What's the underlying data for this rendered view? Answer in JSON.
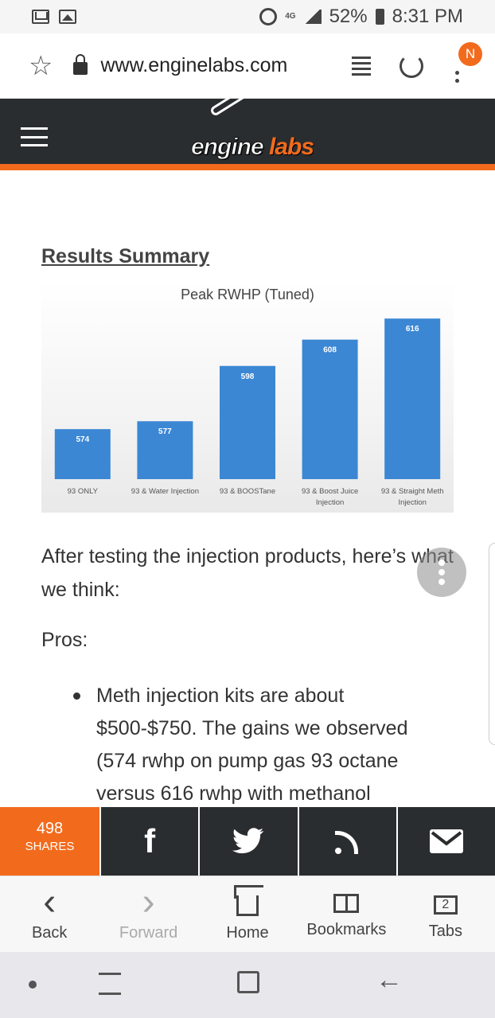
{
  "status_bar": {
    "battery": "52%",
    "time": "8:31 PM",
    "network": "4G"
  },
  "browser": {
    "url": "www.enginelabs.com",
    "profile_initial": "N"
  },
  "site": {
    "logo_engine": "engine",
    "logo_labs": "labs"
  },
  "article": {
    "heading": "Results Summary",
    "paragraph": "After testing the injection products, here’s what we think:",
    "pros_label": "Pros:",
    "bullet_1": "Meth injection kits are about $500-$750. The gains we observed (574 rwhp on pump gas 93 octane versus 616 rwhp with methanol"
  },
  "chart_data": {
    "type": "bar",
    "title": "Peak RWHP (Tuned)",
    "categories": [
      [
        "93 ONLY"
      ],
      [
        "93 & Water Injection"
      ],
      [
        "93 & BOOSTane"
      ],
      [
        "93 & Boost Juice",
        "Injection"
      ],
      [
        "93 & Straight Meth",
        "Injection"
      ]
    ],
    "values": [
      574,
      577,
      598,
      608,
      616
    ],
    "value_labels": [
      "574",
      "577",
      "598",
      "608",
      "616"
    ],
    "bar_color": "#3b87d4",
    "xlabel": "",
    "ylabel": "",
    "grid": false
  },
  "share_bar": {
    "count": "498",
    "count_label": "SHARES",
    "buttons": [
      "facebook-icon",
      "twitter-icon",
      "rss-icon",
      "email-icon"
    ],
    "facebook_glyph": "f",
    "twitter_glyph": "🐦"
  },
  "bottom_nav": {
    "back": "Back",
    "forward": "Forward",
    "home": "Home",
    "bookmarks": "Bookmarks",
    "tabs": "Tabs",
    "tabs_count": "2",
    "back_glyph": "‹",
    "forward_glyph": "›"
  },
  "colors": {
    "brand_orange": "#f26b1d",
    "header_dark": "#2a2d2f"
  }
}
